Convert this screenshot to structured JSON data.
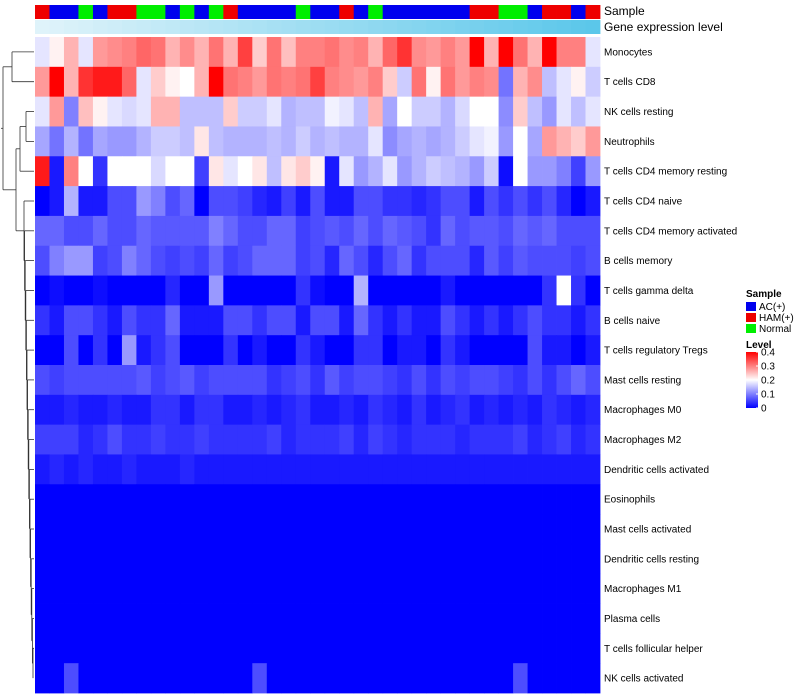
{
  "chart_data": {
    "type": "heatmap",
    "title": "",
    "annotations": [
      {
        "name": "Sample",
        "label": "Sample"
      },
      {
        "name": "Gene expression level",
        "label": "Gene expression level"
      }
    ],
    "sample_groups": [
      "HAM(+)",
      "AC(+)",
      "AC(+)",
      "Normal",
      "AC(+)",
      "HAM(+)",
      "HAM(+)",
      "Normal",
      "Normal",
      "AC(+)",
      "Normal",
      "AC(+)",
      "Normal",
      "HAM(+)",
      "AC(+)",
      "AC(+)",
      "AC(+)",
      "AC(+)",
      "Normal",
      "AC(+)",
      "AC(+)",
      "HAM(+)",
      "AC(+)",
      "Normal",
      "AC(+)",
      "AC(+)",
      "AC(+)",
      "AC(+)",
      "AC(+)",
      "AC(+)",
      "HAM(+)",
      "HAM(+)",
      "Normal",
      "Normal",
      "AC(+)",
      "HAM(+)",
      "HAM(+)",
      "AC(+)",
      "HAM(+)"
    ],
    "rows": [
      "Monocytes",
      "T cells CD8",
      "NK cells resting",
      "Neutrophils",
      "T cells CD4 memory resting",
      "T cells CD4 naive",
      "T cells CD4 memory activated",
      "B cells memory",
      "T cells gamma delta",
      "B cells naive",
      "T cells regulatory  Tregs",
      "Mast cells resting",
      "Macrophages M0",
      "Macrophages M2",
      "Dendritic cells activated",
      "Eosinophils",
      "Mast cells activated",
      "Dendritic cells resting",
      "Macrophages M1",
      "Plasma cells",
      "T cells follicular helper",
      "NK cells activated"
    ],
    "values": [
      [
        0.18,
        0.21,
        0.26,
        0.18,
        0.28,
        0.29,
        0.3,
        0.32,
        0.31,
        0.26,
        0.29,
        0.26,
        0.31,
        0.26,
        0.35,
        0.24,
        0.31,
        0.25,
        0.3,
        0.3,
        0.31,
        0.29,
        0.3,
        0.26,
        0.32,
        0.36,
        0.29,
        0.28,
        0.3,
        0.28,
        0.4,
        0.26,
        0.4,
        0.31,
        0.26,
        0.4,
        0.3,
        0.3,
        0.18
      ],
      [
        0.28,
        0.4,
        0.26,
        0.36,
        0.38,
        0.38,
        0.32,
        0.18,
        0.24,
        0.21,
        0.2,
        0.26,
        0.4,
        0.31,
        0.3,
        0.28,
        0.31,
        0.3,
        0.31,
        0.35,
        0.3,
        0.29,
        0.28,
        0.3,
        0.24,
        0.16,
        0.31,
        0.21,
        0.31,
        0.28,
        0.3,
        0.29,
        0.09,
        0.26,
        0.29,
        0.15,
        0.18,
        0.21,
        0.16
      ],
      [
        0.18,
        0.28,
        0.1,
        0.25,
        0.21,
        0.18,
        0.17,
        0.18,
        0.26,
        0.26,
        0.15,
        0.15,
        0.15,
        0.24,
        0.16,
        0.16,
        0.18,
        0.14,
        0.15,
        0.15,
        0.19,
        0.18,
        0.15,
        0.26,
        0.13,
        0.2,
        0.16,
        0.16,
        0.14,
        0.17,
        0.2,
        0.2,
        0.11,
        0.24,
        0.15,
        0.12,
        0.18,
        0.15,
        0.18
      ],
      [
        0.13,
        0.09,
        0.14,
        0.09,
        0.13,
        0.12,
        0.12,
        0.14,
        0.16,
        0.16,
        0.15,
        0.22,
        0.15,
        0.14,
        0.14,
        0.14,
        0.15,
        0.14,
        0.16,
        0.14,
        0.15,
        0.14,
        0.14,
        0.18,
        0.11,
        0.13,
        0.14,
        0.13,
        0.14,
        0.16,
        0.18,
        0.19,
        0.12,
        0.2,
        0.13,
        0.28,
        0.26,
        0.24,
        0.28
      ],
      [
        0.38,
        0.02,
        0.3,
        0.2,
        0.04,
        0.2,
        0.2,
        0.2,
        0.17,
        0.2,
        0.2,
        0.05,
        0.22,
        0.18,
        0.2,
        0.22,
        0.15,
        0.22,
        0.24,
        0.21,
        0.02,
        0.18,
        0.12,
        0.14,
        0.18,
        0.12,
        0.14,
        0.16,
        0.15,
        0.14,
        0.12,
        0.16,
        0.01,
        0.2,
        0.12,
        0.12,
        0.1,
        0.05,
        0.12
      ],
      [
        0.0,
        0.02,
        0.14,
        0.02,
        0.02,
        0.06,
        0.06,
        0.12,
        0.1,
        0.06,
        0.08,
        0.0,
        0.06,
        0.06,
        0.05,
        0.03,
        0.02,
        0.05,
        0.02,
        0.06,
        0.02,
        0.02,
        0.06,
        0.06,
        0.04,
        0.04,
        0.03,
        0.04,
        0.06,
        0.06,
        0.02,
        0.06,
        0.04,
        0.06,
        0.04,
        0.06,
        0.03,
        0.0,
        0.02
      ],
      [
        0.08,
        0.08,
        0.06,
        0.06,
        0.08,
        0.06,
        0.06,
        0.08,
        0.07,
        0.07,
        0.07,
        0.07,
        0.1,
        0.08,
        0.06,
        0.06,
        0.08,
        0.08,
        0.05,
        0.06,
        0.07,
        0.06,
        0.08,
        0.06,
        0.08,
        0.07,
        0.06,
        0.04,
        0.08,
        0.06,
        0.07,
        0.07,
        0.06,
        0.08,
        0.07,
        0.08,
        0.06,
        0.06,
        0.06
      ],
      [
        0.06,
        0.1,
        0.12,
        0.12,
        0.05,
        0.06,
        0.1,
        0.08,
        0.06,
        0.05,
        0.06,
        0.05,
        0.08,
        0.05,
        0.06,
        0.08,
        0.08,
        0.08,
        0.05,
        0.06,
        0.03,
        0.08,
        0.06,
        0.03,
        0.06,
        0.08,
        0.04,
        0.06,
        0.06,
        0.06,
        0.03,
        0.07,
        0.05,
        0.07,
        0.06,
        0.06,
        0.06,
        0.05,
        0.06
      ],
      [
        0.0,
        0.01,
        0.0,
        0.0,
        0.01,
        0.0,
        0.0,
        0.0,
        0.0,
        0.03,
        0.0,
        0.0,
        0.12,
        0.0,
        0.0,
        0.0,
        0.0,
        0.0,
        0.04,
        0.01,
        0.0,
        0.0,
        0.14,
        0.0,
        0.0,
        0.0,
        0.0,
        0.0,
        0.02,
        0.0,
        0.0,
        0.0,
        0.0,
        0.0,
        0.0,
        0.04,
        0.2,
        0.04,
        0.0
      ],
      [
        0.04,
        0.02,
        0.06,
        0.06,
        0.04,
        0.02,
        0.06,
        0.04,
        0.04,
        0.08,
        0.02,
        0.02,
        0.02,
        0.06,
        0.06,
        0.04,
        0.06,
        0.06,
        0.02,
        0.06,
        0.06,
        0.02,
        0.08,
        0.04,
        0.02,
        0.04,
        0.02,
        0.02,
        0.06,
        0.04,
        0.02,
        0.04,
        0.02,
        0.04,
        0.06,
        0.04,
        0.04,
        0.02,
        0.04
      ],
      [
        0.0,
        0.0,
        0.06,
        0.0,
        0.04,
        0.0,
        0.12,
        0.02,
        0.04,
        0.06,
        0.0,
        0.0,
        0.0,
        0.04,
        0.0,
        0.02,
        0.0,
        0.0,
        0.04,
        0.02,
        0.0,
        0.0,
        0.04,
        0.04,
        0.0,
        0.02,
        0.02,
        0.0,
        0.04,
        0.02,
        0.0,
        0.0,
        0.0,
        0.0,
        0.06,
        0.02,
        0.02,
        0.0,
        0.02
      ],
      [
        0.06,
        0.05,
        0.06,
        0.06,
        0.06,
        0.06,
        0.06,
        0.07,
        0.05,
        0.06,
        0.07,
        0.05,
        0.06,
        0.06,
        0.06,
        0.06,
        0.04,
        0.05,
        0.06,
        0.04,
        0.07,
        0.05,
        0.06,
        0.06,
        0.05,
        0.04,
        0.06,
        0.04,
        0.06,
        0.05,
        0.06,
        0.06,
        0.05,
        0.04,
        0.06,
        0.04,
        0.06,
        0.08,
        0.06
      ],
      [
        0.02,
        0.02,
        0.03,
        0.02,
        0.02,
        0.03,
        0.02,
        0.02,
        0.04,
        0.04,
        0.02,
        0.04,
        0.04,
        0.02,
        0.02,
        0.03,
        0.02,
        0.03,
        0.04,
        0.02,
        0.02,
        0.03,
        0.02,
        0.04,
        0.03,
        0.02,
        0.04,
        0.02,
        0.03,
        0.04,
        0.02,
        0.03,
        0.02,
        0.03,
        0.02,
        0.04,
        0.03,
        0.02,
        0.03
      ],
      [
        0.05,
        0.05,
        0.05,
        0.03,
        0.04,
        0.06,
        0.04,
        0.04,
        0.05,
        0.04,
        0.04,
        0.05,
        0.04,
        0.04,
        0.04,
        0.04,
        0.05,
        0.03,
        0.04,
        0.04,
        0.04,
        0.05,
        0.03,
        0.05,
        0.04,
        0.03,
        0.04,
        0.04,
        0.04,
        0.03,
        0.04,
        0.04,
        0.04,
        0.05,
        0.03,
        0.04,
        0.05,
        0.03,
        0.04
      ],
      [
        0.02,
        0.03,
        0.02,
        0.03,
        0.02,
        0.02,
        0.03,
        0.02,
        0.02,
        0.02,
        0.03,
        0.02,
        0.02,
        0.02,
        0.02,
        0.02,
        0.02,
        0.02,
        0.02,
        0.02,
        0.02,
        0.02,
        0.02,
        0.02,
        0.02,
        0.02,
        0.02,
        0.02,
        0.02,
        0.02,
        0.02,
        0.02,
        0.02,
        0.02,
        0.02,
        0.02,
        0.02,
        0.02,
        0.02
      ],
      [
        0,
        0,
        0,
        0,
        0,
        0,
        0,
        0,
        0,
        0,
        0,
        0,
        0,
        0,
        0,
        0,
        0,
        0,
        0,
        0,
        0,
        0,
        0,
        0,
        0,
        0,
        0,
        0,
        0,
        0,
        0,
        0,
        0,
        0,
        0,
        0,
        0,
        0,
        0
      ],
      [
        0,
        0,
        0,
        0,
        0,
        0,
        0,
        0,
        0,
        0,
        0,
        0,
        0,
        0,
        0,
        0,
        0,
        0,
        0,
        0,
        0,
        0,
        0,
        0,
        0,
        0,
        0,
        0,
        0,
        0,
        0,
        0,
        0,
        0,
        0,
        0,
        0,
        0,
        0
      ],
      [
        0,
        0,
        0,
        0,
        0,
        0,
        0,
        0,
        0,
        0,
        0,
        0,
        0,
        0,
        0,
        0,
        0,
        0,
        0,
        0,
        0,
        0,
        0,
        0,
        0,
        0,
        0,
        0,
        0,
        0,
        0,
        0,
        0,
        0,
        0,
        0,
        0,
        0,
        0
      ],
      [
        0,
        0,
        0,
        0,
        0,
        0,
        0,
        0,
        0,
        0,
        0,
        0,
        0,
        0,
        0,
        0,
        0,
        0,
        0,
        0,
        0,
        0,
        0,
        0,
        0,
        0,
        0,
        0,
        0,
        0,
        0,
        0,
        0,
        0,
        0,
        0,
        0,
        0,
        0
      ],
      [
        0,
        0,
        0,
        0,
        0,
        0,
        0,
        0,
        0,
        0,
        0,
        0,
        0,
        0,
        0,
        0,
        0,
        0,
        0,
        0,
        0,
        0,
        0,
        0,
        0,
        0,
        0,
        0,
        0,
        0,
        0,
        0,
        0,
        0,
        0,
        0,
        0,
        0,
        0
      ],
      [
        0,
        0,
        0,
        0,
        0,
        0,
        0,
        0,
        0,
        0,
        0,
        0,
        0,
        0,
        0,
        0,
        0,
        0,
        0,
        0,
        0,
        0,
        0,
        0,
        0,
        0,
        0,
        0,
        0,
        0,
        0,
        0,
        0,
        0,
        0,
        0,
        0,
        0,
        0
      ],
      [
        0.0,
        0.0,
        0.06,
        0.0,
        0.0,
        0.0,
        0.0,
        0.0,
        0.0,
        0.0,
        0.0,
        0.0,
        0.0,
        0.0,
        0.0,
        0.06,
        0.0,
        0.0,
        0.0,
        0.0,
        0.0,
        0.0,
        0.0,
        0.0,
        0.0,
        0.0,
        0.0,
        0.0,
        0.0,
        0.0,
        0.0,
        0.0,
        0.0,
        0.06,
        0.0,
        0.0,
        0.0,
        0.0,
        0.0
      ]
    ],
    "color_scale": {
      "min": 0,
      "max": 0.4,
      "low": "#0000ff",
      "mid": "#ffffff",
      "high": "#ff0000",
      "mid_value": 0.2
    },
    "legend": {
      "placement": "right",
      "sample_title": "Sample",
      "sample_items": [
        {
          "label": "AC(+)",
          "color": "#0000ee"
        },
        {
          "label": "HAM(+)",
          "color": "#ee0000"
        },
        {
          "label": "Normal",
          "color": "#00ee00"
        }
      ],
      "level_title": "Level",
      "level_ticks": [
        "0.4",
        "0.3",
        "0.2",
        "0.1",
        "0"
      ]
    },
    "expression_bar_colors": {
      "start": "#dff3fa",
      "end": "#5bc7ea"
    }
  }
}
